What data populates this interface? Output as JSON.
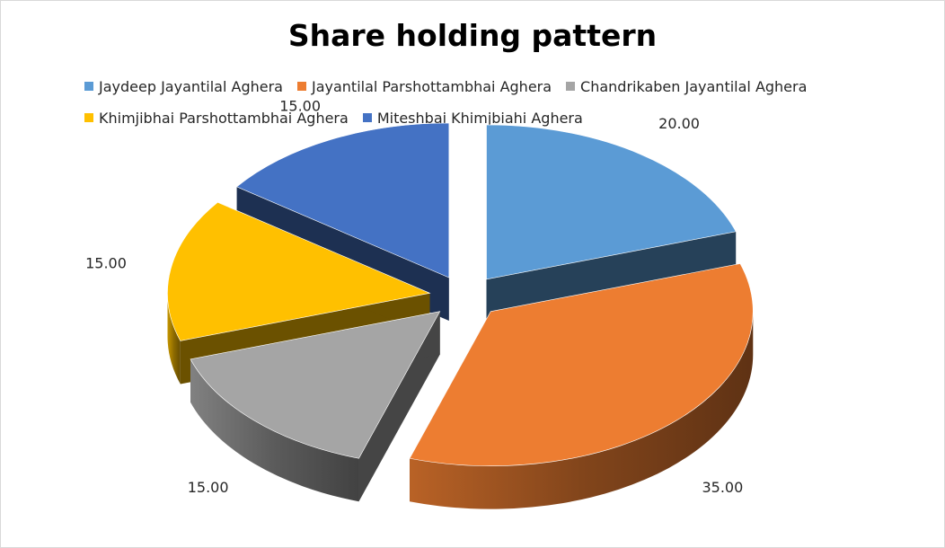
{
  "chart_data": {
    "type": "pie",
    "title": "Share holding pattern",
    "legend_position": "top",
    "categories": [
      "Jaydeep Jayantilal Aghera",
      "Jayantilal Parshottambhai Aghera",
      "Chandrikaben Jayantilal Aghera",
      "Khimjibhai Parshottambhai Aghera",
      "Miteshbai Khimjbiahi Aghera"
    ],
    "values": [
      20.0,
      35.0,
      15.0,
      15.0,
      15.0
    ],
    "value_labels": [
      "20.00",
      "35.00",
      "15.00",
      "15.00",
      "15.00"
    ],
    "colors": [
      "#5b9bd5",
      "#ed7d31",
      "#a5a5a5",
      "#ffc000",
      "#4472c4"
    ],
    "exploded": true,
    "three_d": true
  }
}
